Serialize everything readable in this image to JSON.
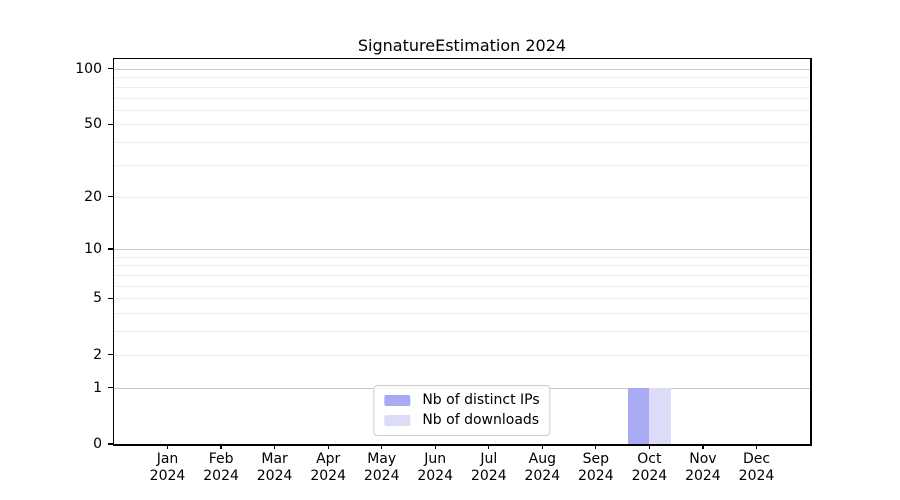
{
  "chart_data": {
    "type": "bar",
    "title": "SignatureEstimation 2024",
    "x": {
      "categories": [
        "Jan",
        "Feb",
        "Mar",
        "Apr",
        "May",
        "Jun",
        "Jul",
        "Aug",
        "Sep",
        "Oct",
        "Nov",
        "Dec"
      ],
      "year_label": "2024"
    },
    "series": [
      {
        "name": "Nb of distinct IPs",
        "color": "#a9a9f4",
        "values": [
          0,
          0,
          0,
          0,
          0,
          0,
          0,
          0,
          0,
          1,
          0,
          0
        ]
      },
      {
        "name": "Nb of downloads",
        "color": "#dcdcf9",
        "values": [
          0,
          0,
          0,
          0,
          0,
          0,
          0,
          0,
          0,
          1,
          0,
          0
        ]
      }
    ],
    "y_axis": {
      "scale": "log1p",
      "major_ticks": [
        0,
        1,
        2,
        5,
        10,
        20,
        50,
        100
      ],
      "minor_ticks": [
        3,
        4,
        6,
        7,
        8,
        9,
        30,
        40,
        60,
        70,
        80,
        90
      ],
      "ylim": [
        0,
        113
      ],
      "grid": true
    },
    "legend": {
      "position": "lower center",
      "entries": [
        "Nb of distinct IPs",
        "Nb of downloads"
      ]
    },
    "style": {
      "major_grid_color": "#c9c9c9",
      "minor_grid_color": "#ededed",
      "axis_color": "#000000",
      "background": "#ffffff"
    }
  }
}
